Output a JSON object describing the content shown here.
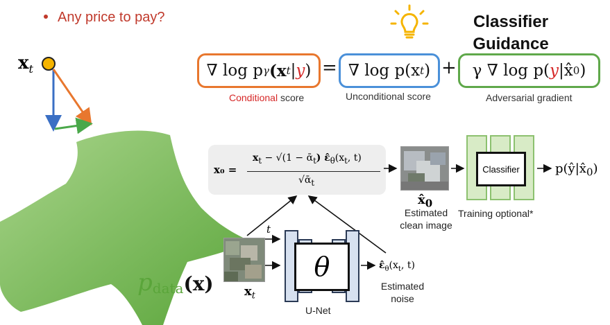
{
  "bullet": "Any price to pay?",
  "guidance_title_line1": "Classifier",
  "guidance_title_line2": "Guidance",
  "equation": {
    "lhs_prefix": "∇ log p",
    "lhs_sub": "γ",
    "lhs_arg_open": "(x",
    "lhs_arg_sub": "t",
    "lhs_bar": "|",
    "lhs_y": "y",
    "lhs_close": ")",
    "equals": "=",
    "mid": "∇ log p(x",
    "mid_sub": "t",
    "mid_close": ")",
    "plus": "+",
    "rhs_prefix": "γ ∇ log p(",
    "rhs_y": "y",
    "rhs_rest": "|x̂",
    "rhs_sub": "0",
    "rhs_close": ")"
  },
  "captions": {
    "conditional_word": "Conditional",
    "score_word": " score",
    "unconditional": "Unconditional score",
    "adversarial": "Adversarial gradient"
  },
  "xt_top": "x",
  "xt_top_sub": "t",
  "p_data": "p",
  "p_data_sub": "data",
  "p_data_arg": "(x)",
  "formula": {
    "lhs": "x₀ =",
    "num_a": "x",
    "num_a_sub": "t",
    "num_b": "− √(1 − ᾱ",
    "num_b_sub": "t",
    "num_c": ") ε̂",
    "num_c_sub": "θ",
    "num_d": "(x",
    "num_d_sub": "t",
    "num_e": ", t)",
    "den": "√ᾱ",
    "den_sub": "t"
  },
  "x0_hat": "x̂",
  "x0_hat_sub": "0",
  "estimated_clean": [
    "Estimated",
    "clean image"
  ],
  "classifier_label": "Classifier",
  "training_optional": "Training optional*",
  "output": "p(ŷ|x̂",
  "output_sub": "0",
  "output_close": ")",
  "t_label": "t",
  "theta": "θ",
  "unet_label": "U-Net",
  "xt_bottom": "x",
  "xt_bottom_sub": "t",
  "eps": "ε̂",
  "eps_sub": "θ",
  "eps_arg": "(x",
  "eps_arg_sub": "t",
  "eps_close": ", t)",
  "estimated_noise": [
    "Estimated",
    "noise"
  ],
  "colors": {
    "conditional_box": "#e8772e",
    "unconditional_box": "#4a90d9",
    "adversarial_box": "#5fa84a",
    "vec_blue": "#3a6fc4",
    "vec_orange": "#e8772e",
    "vec_green": "#4aa84a",
    "star_green": "#7cbf5a",
    "red_text": "#d62828"
  }
}
